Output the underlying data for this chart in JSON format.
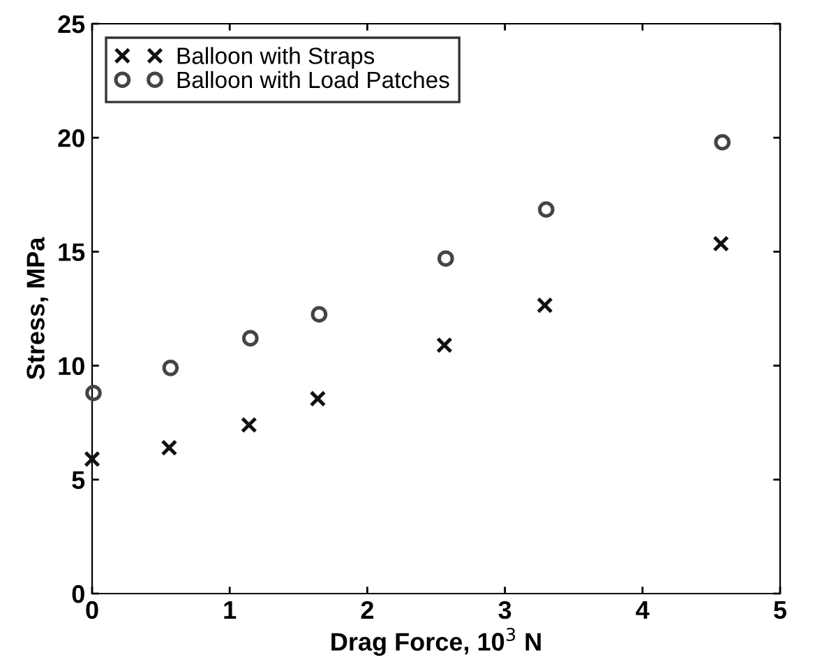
{
  "chart_data": {
    "type": "scatter",
    "xlabel": "Drag Force, 10$^{3}$ N",
    "ylabel": "Stress, MPa",
    "xlim": [
      0,
      5
    ],
    "ylim": [
      0,
      25
    ],
    "xticks": [
      0,
      1,
      2,
      3,
      4,
      5
    ],
    "yticks": [
      0,
      5,
      10,
      15,
      20,
      25
    ],
    "grid": false,
    "legend": "top left",
    "series": [
      {
        "name": "Balloon with Straps",
        "color": "#111111",
        "marker": "cross",
        "x": [
          0,
          0.56,
          1.14,
          1.64,
          2.56,
          3.29,
          4.57
        ],
        "values": [
          5.9,
          6.4,
          7.4,
          8.55,
          10.9,
          12.65,
          15.35
        ]
      },
      {
        "name": "Balloon with Load Patches",
        "color": "#444444",
        "marker": "circle",
        "x": [
          0.01,
          0.57,
          1.15,
          1.65,
          2.57,
          3.3,
          4.58
        ],
        "values": [
          8.8,
          9.9,
          11.2,
          12.25,
          14.7,
          16.85,
          19.8
        ]
      }
    ]
  }
}
